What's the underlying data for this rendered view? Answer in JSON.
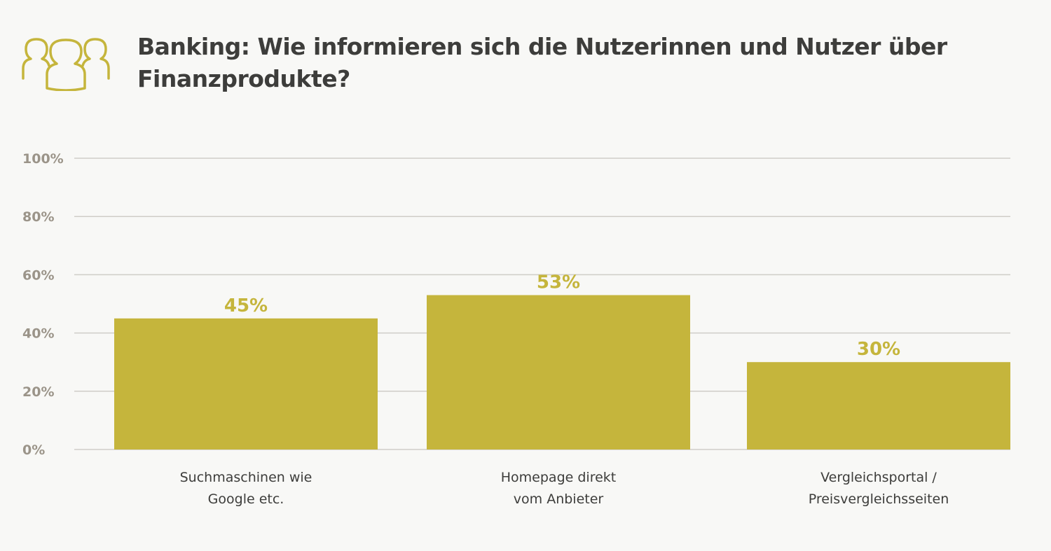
{
  "colors": {
    "accent": "#c5b53c",
    "title": "#3d3d3b",
    "tick": "#9b9489",
    "grid": "#cfcdc8",
    "background": "#f8f8f6"
  },
  "header": {
    "icon": "users-icon",
    "title": "Banking: Wie informieren sich die Nutzerinnen und Nutzer über Finanzprodukte?"
  },
  "chart_data": {
    "type": "bar",
    "title": "Banking: Wie informieren sich die Nutzerinnen und Nutzer über Finanzprodukte?",
    "xlabel": "",
    "ylabel": "",
    "ylim": [
      0,
      100
    ],
    "yticks": [
      0,
      20,
      40,
      60,
      80,
      100
    ],
    "ytick_labels": [
      "0%",
      "20%",
      "40%",
      "60%",
      "80%",
      "100%"
    ],
    "grid": true,
    "categories": [
      [
        "Suchmaschinen wie",
        "Google etc."
      ],
      [
        "Homepage direkt",
        "vom Anbieter"
      ],
      [
        "Vergleichsportal /",
        "Preisvergleichsseiten"
      ]
    ],
    "values": [
      45,
      53,
      30
    ],
    "value_labels": [
      "45%",
      "53%",
      "30%"
    ]
  }
}
